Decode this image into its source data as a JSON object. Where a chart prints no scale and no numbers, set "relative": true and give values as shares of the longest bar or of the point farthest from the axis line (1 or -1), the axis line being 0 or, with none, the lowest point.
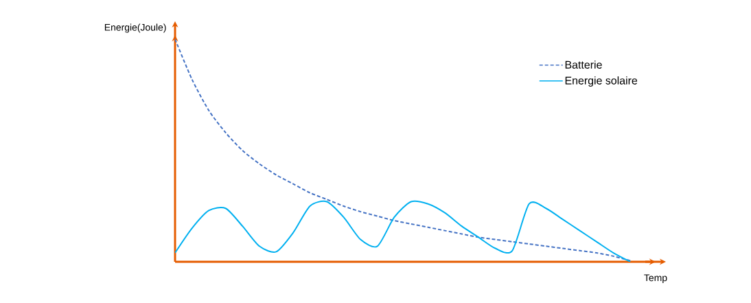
{
  "chart_data": {
    "type": "line",
    "relative": true,
    "xlabel": "Temp",
    "ylabel": "Energie(Joule)",
    "legend": "top right",
    "marker": "none",
    "categories": [
      null,
      null,
      null,
      null,
      null,
      null,
      null,
      null,
      null,
      null,
      null,
      null,
      null,
      null,
      null,
      null,
      null,
      null,
      null,
      null,
      null,
      null,
      null,
      null,
      null,
      null,
      null,
      null,
      null
    ],
    "series": [
      {
        "name": "Batterie",
        "color": "#4472c4",
        "line_style": "dashed",
        "values": [
          1.0,
          0.82,
          0.68,
          0.58,
          0.5,
          0.44,
          0.39,
          0.35,
          0.31,
          0.28,
          0.25,
          0.225,
          0.205,
          0.185,
          0.17,
          0.155,
          0.14,
          0.125,
          0.11,
          0.1,
          0.09,
          0.08,
          0.07,
          0.06,
          0.05,
          0.04,
          0.025,
          0.005,
          null
        ]
      },
      {
        "name": "Energie solaire",
        "color": "#00b0f0",
        "line_style": "solid",
        "values": [
          0.04,
          0.15,
          0.23,
          0.24,
          0.16,
          0.07,
          0.045,
          0.13,
          0.25,
          0.27,
          0.2,
          0.1,
          0.07,
          0.2,
          0.27,
          0.26,
          0.22,
          0.16,
          0.11,
          0.06,
          0.05,
          0.26,
          0.24,
          0.19,
          0.14,
          0.09,
          0.04,
          0.0,
          null
        ]
      }
    ]
  }
}
